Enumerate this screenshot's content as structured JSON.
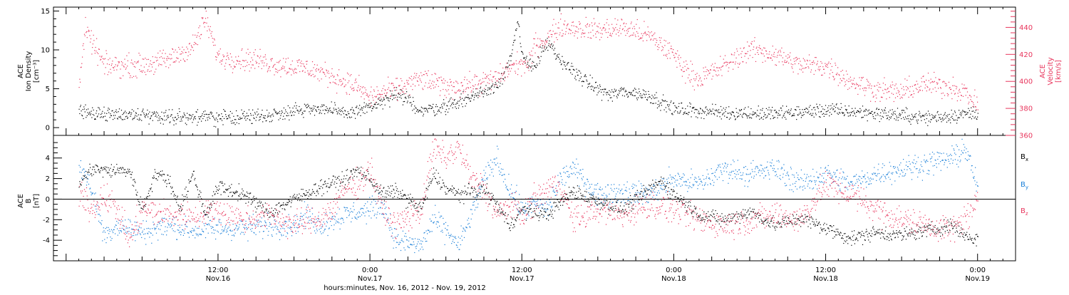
{
  "chart_data": [
    {
      "type": "scatter",
      "panel": "top",
      "ylabel_lines": [
        "ACE",
        "Ion Density",
        "[cm⁻³]"
      ],
      "ylabel_right_lines": [
        "ACE",
        "Velocity",
        "[km/s]"
      ],
      "ylim": [
        -1,
        15.5
      ],
      "yticks": [
        "0",
        "5",
        "10",
        "15"
      ],
      "ylim_right": [
        360,
        455
      ],
      "yticks_right": [
        "360",
        "380",
        "400",
        "420",
        "440"
      ],
      "series": [
        {
          "color": "#000000",
          "axis": "left",
          "keypoints": [
            [
              1,
              2.0
            ],
            [
              4,
              1.8
            ],
            [
              8,
              1.5
            ],
            [
              12,
              1.3
            ],
            [
              16,
              1.6
            ],
            [
              18,
              2.3
            ],
            [
              20,
              2.6
            ],
            [
              22,
              1.8
            ],
            [
              24,
              2.7
            ],
            [
              25,
              3.3
            ],
            [
              26,
              4.2
            ],
            [
              27,
              3.6
            ],
            [
              28,
              2.2
            ],
            [
              30,
              2.8
            ],
            [
              32,
              4.0
            ],
            [
              34,
              5.5
            ],
            [
              35,
              8.5
            ],
            [
              35.7,
              13.5
            ],
            [
              36,
              9.0
            ],
            [
              37,
              8.0
            ],
            [
              38,
              11.0
            ],
            [
              39,
              8.5
            ],
            [
              40,
              7.5
            ],
            [
              41,
              6.0
            ],
            [
              42,
              5.0
            ],
            [
              43,
              4.2
            ],
            [
              44,
              4.7
            ],
            [
              46,
              4.2
            ],
            [
              48,
              2.4
            ],
            [
              52,
              2.0
            ],
            [
              56,
              1.8
            ],
            [
              60,
              2.3
            ],
            [
              64,
              1.9
            ],
            [
              68,
              1.3
            ],
            [
              70,
              1.6
            ],
            [
              72,
              2.0
            ]
          ],
          "jitter": 0.9
        },
        {
          "color": "#e8365d",
          "axis": "right",
          "keypoints": [
            [
              1,
              398
            ],
            [
              1.5,
              438
            ],
            [
              3,
              412
            ],
            [
              6,
              412
            ],
            [
              8,
              416
            ],
            [
              10,
              426
            ],
            [
              11,
              446
            ],
            [
              12,
              418
            ],
            [
              15,
              416
            ],
            [
              17,
              412
            ],
            [
              19,
              410
            ],
            [
              21,
              404
            ],
            [
              23,
              396
            ],
            [
              24,
              388
            ],
            [
              25,
              392
            ],
            [
              26,
              394
            ],
            [
              28,
              402
            ],
            [
              30,
              396
            ],
            [
              32,
              398
            ],
            [
              34,
              402
            ],
            [
              35,
              410
            ],
            [
              36,
              414
            ],
            [
              36.5,
              410
            ],
            [
              37,
              428
            ],
            [
              38,
              432
            ],
            [
              39,
              441
            ],
            [
              40,
              440
            ],
            [
              42,
              438
            ],
            [
              44,
              440
            ],
            [
              46,
              434
            ],
            [
              48,
              420
            ],
            [
              49,
              408
            ],
            [
              50,
              402
            ],
            [
              52,
              412
            ],
            [
              54,
              424
            ],
            [
              56,
              420
            ],
            [
              58,
              412
            ],
            [
              60,
              412
            ],
            [
              62,
              400
            ],
            [
              64,
              394
            ],
            [
              66,
              392
            ],
            [
              67,
              396
            ],
            [
              68,
              398
            ],
            [
              70,
              396
            ],
            [
              71,
              392
            ],
            [
              72,
              382
            ]
          ],
          "jitter": 8
        }
      ]
    },
    {
      "type": "scatter",
      "panel": "bottom",
      "ylabel_lines": [
        "ACE",
        "B",
        "[nT]"
      ],
      "ylim": [
        -6,
        6.2
      ],
      "yticks": [
        "-4",
        "-2",
        "0",
        "2",
        "4"
      ],
      "zero_line": true,
      "legend": [
        {
          "label": "B",
          "sub": "x",
          "color": "#000000"
        },
        {
          "label": "B",
          "sub": "y",
          "color": "#1a7fd8"
        },
        {
          "label": "B",
          "sub": "z",
          "color": "#e8365d"
        }
      ],
      "series": [
        {
          "color": "#000000",
          "keypoints": [
            [
              1,
              1.5
            ],
            [
              2,
              3.0
            ],
            [
              3,
              2.8
            ],
            [
              5,
              2.8
            ],
            [
              6,
              -1.0
            ],
            [
              7,
              2.5
            ],
            [
              8,
              2.0
            ],
            [
              9,
              -0.8
            ],
            [
              10,
              2.5
            ],
            [
              11,
              -1.5
            ],
            [
              12,
              1.2
            ],
            [
              14,
              0.5
            ],
            [
              16,
              -1.3
            ],
            [
              18,
              0.0
            ],
            [
              20,
              1.2
            ],
            [
              22,
              2.0
            ],
            [
              23,
              2.8
            ],
            [
              24,
              2.0
            ],
            [
              25,
              0.5
            ],
            [
              26,
              0.8
            ],
            [
              27,
              0.0
            ],
            [
              28,
              -1.0
            ],
            [
              29,
              2.5
            ],
            [
              30,
              1.0
            ],
            [
              31,
              0.5
            ],
            [
              33,
              1.0
            ],
            [
              34,
              -0.5
            ],
            [
              35,
              -2.5
            ],
            [
              36,
              -1.0
            ],
            [
              38,
              -1.5
            ],
            [
              40,
              0.8
            ],
            [
              42,
              -0.2
            ],
            [
              44,
              -1.0
            ],
            [
              46,
              1.0
            ],
            [
              47,
              1.8
            ],
            [
              48,
              0.5
            ],
            [
              50,
              -1.5
            ],
            [
              52,
              -2.0
            ],
            [
              54,
              -1.2
            ],
            [
              56,
              -2.5
            ],
            [
              58,
              -1.8
            ],
            [
              60,
              -2.8
            ],
            [
              62,
              -3.8
            ],
            [
              64,
              -3.2
            ],
            [
              66,
              -3.5
            ],
            [
              68,
              -3.0
            ],
            [
              70,
              -2.5
            ],
            [
              71,
              -3.5
            ],
            [
              72,
              -4.0
            ]
          ],
          "jitter": 0.7
        },
        {
          "color": "#1a7fd8",
          "keypoints": [
            [
              1,
              3.5
            ],
            [
              2,
              1.0
            ],
            [
              3,
              -3.5
            ],
            [
              4,
              -2.5
            ],
            [
              6,
              -3.2
            ],
            [
              8,
              -2.5
            ],
            [
              10,
              -3.0
            ],
            [
              12,
              -2.8
            ],
            [
              14,
              -2.8
            ],
            [
              16,
              -2.5
            ],
            [
              18,
              -2.5
            ],
            [
              19,
              -1.5
            ],
            [
              20,
              -2.5
            ],
            [
              22,
              -1.5
            ],
            [
              24,
              -1.0
            ],
            [
              25,
              -0.5
            ],
            [
              26,
              -4.0
            ],
            [
              28,
              -4.5
            ],
            [
              29,
              -2.0
            ],
            [
              30,
              -3.0
            ],
            [
              31,
              -4.5
            ],
            [
              32,
              -1.5
            ],
            [
              33,
              2.0
            ],
            [
              34,
              4.0
            ],
            [
              35,
              1.0
            ],
            [
              36,
              -1.0
            ],
            [
              37,
              -0.5
            ],
            [
              38,
              -1.0
            ],
            [
              39,
              2.0
            ],
            [
              40,
              3.0
            ],
            [
              42,
              0.5
            ],
            [
              44,
              0.8
            ],
            [
              46,
              0.5
            ],
            [
              48,
              2.0
            ],
            [
              50,
              1.5
            ],
            [
              52,
              3.0
            ],
            [
              54,
              2.5
            ],
            [
              56,
              3.0
            ],
            [
              58,
              1.5
            ],
            [
              60,
              2.5
            ],
            [
              62,
              1.5
            ],
            [
              64,
              2.5
            ],
            [
              66,
              3.0
            ],
            [
              68,
              3.5
            ],
            [
              70,
              4.0
            ],
            [
              71,
              5.0
            ],
            [
              72,
              1.0
            ]
          ],
          "jitter": 1.1
        },
        {
          "color": "#e8365d",
          "keypoints": [
            [
              1,
              0.5
            ],
            [
              2,
              -1.0
            ],
            [
              3,
              0.5
            ],
            [
              4,
              -1.0
            ],
            [
              5,
              -4.0
            ],
            [
              6,
              -1.0
            ],
            [
              8,
              -1.5
            ],
            [
              10,
              -1.5
            ],
            [
              12,
              -1.0
            ],
            [
              14,
              -2.0
            ],
            [
              16,
              -1.5
            ],
            [
              18,
              -2.5
            ],
            [
              20,
              -1.8
            ],
            [
              21,
              -1.0
            ],
            [
              22,
              1.0
            ],
            [
              23,
              1.5
            ],
            [
              24,
              3.0
            ],
            [
              25,
              -1.0
            ],
            [
              26,
              -2.5
            ],
            [
              28,
              -1.0
            ],
            [
              29,
              5.0
            ],
            [
              30,
              4.0
            ],
            [
              31,
              5.0
            ],
            [
              32,
              2.0
            ],
            [
              33,
              1.0
            ],
            [
              34,
              -1.5
            ],
            [
              35,
              -0.5
            ],
            [
              36,
              -1.5
            ],
            [
              37,
              0.0
            ],
            [
              38,
              1.0
            ],
            [
              39,
              1.5
            ],
            [
              40,
              -2.0
            ],
            [
              42,
              -1.0
            ],
            [
              44,
              -1.5
            ],
            [
              46,
              -0.5
            ],
            [
              48,
              -1.0
            ],
            [
              50,
              -2.0
            ],
            [
              52,
              -2.5
            ],
            [
              54,
              -2.0
            ],
            [
              56,
              -1.5
            ],
            [
              58,
              -2.0
            ],
            [
              60,
              1.5
            ],
            [
              62,
              0.5
            ],
            [
              64,
              -1.0
            ],
            [
              66,
              -2.0
            ],
            [
              68,
              -2.5
            ],
            [
              70,
              -3.0
            ],
            [
              72,
              -0.5
            ]
          ],
          "jitter": 1.3
        }
      ]
    }
  ],
  "x_axis": {
    "range_hours": [
      -1,
      75
    ],
    "ticks": [
      {
        "hour": 12,
        "time": "12:00",
        "date": "Nov.16"
      },
      {
        "hour": 24,
        "time": "0:00",
        "date": "Nov.17"
      },
      {
        "hour": 36,
        "time": "12:00",
        "date": "Nov.17"
      },
      {
        "hour": 48,
        "time": "0:00",
        "date": "Nov.18"
      },
      {
        "hour": 60,
        "time": "12:00",
        "date": "Nov.18"
      },
      {
        "hour": 72,
        "time": "0:00",
        "date": "Nov.19"
      }
    ],
    "label": "hours:minutes, Nov. 16, 2012 - Nov. 19, 2012"
  }
}
